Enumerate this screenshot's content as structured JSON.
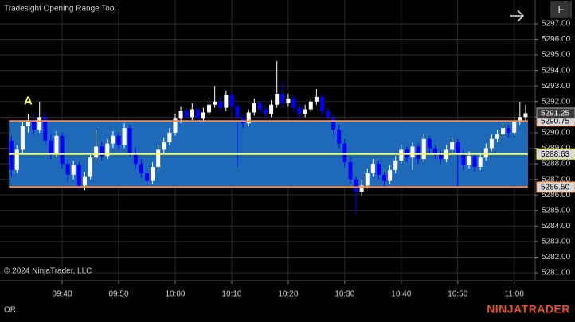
{
  "chart_data": {
    "type": "candlestick",
    "title": "Tradesight Opening Range Tool",
    "candles": [
      [
        5289.5,
        5289.8,
        5287.2,
        5287.6
      ],
      [
        5287.6,
        5289.2,
        5287.4,
        5288.9
      ],
      [
        5288.9,
        5290.8,
        5288.7,
        5290.4
      ],
      [
        5290.4,
        5291.2,
        5290.0,
        5290.8
      ],
      [
        5290.8,
        5291.1,
        5289.9,
        5290.2
      ],
      [
        5290.2,
        5292.0,
        5290.0,
        5291.0
      ],
      [
        5291.0,
        5291.3,
        5289.2,
        5289.5
      ],
      [
        5289.5,
        5289.9,
        5288.3,
        5288.6
      ],
      [
        5288.6,
        5290.1,
        5288.4,
        5289.8
      ],
      [
        5289.8,
        5290.0,
        5287.7,
        5288.0
      ],
      [
        5288.0,
        5288.3,
        5286.9,
        5287.3
      ],
      [
        5287.3,
        5288.2,
        5287.0,
        5287.9
      ],
      [
        5287.9,
        5288.1,
        5286.3,
        5286.6
      ],
      [
        5286.6,
        5287.5,
        5286.3,
        5287.2
      ],
      [
        5287.2,
        5288.7,
        5287.0,
        5288.4
      ],
      [
        5288.4,
        5290.2,
        5288.2,
        5289.1
      ],
      [
        5289.1,
        5289.4,
        5288.2,
        5288.5
      ],
      [
        5288.5,
        5289.6,
        5288.3,
        5289.3
      ],
      [
        5289.3,
        5290.1,
        5289.0,
        5289.8
      ],
      [
        5289.8,
        5290.0,
        5288.9,
        5289.2
      ],
      [
        5289.2,
        5290.6,
        5289.0,
        5290.3
      ],
      [
        5290.3,
        5290.5,
        5288.4,
        5288.7
      ],
      [
        5288.7,
        5289.0,
        5287.7,
        5288.0
      ],
      [
        5288.0,
        5288.3,
        5287.1,
        5287.4
      ],
      [
        5287.4,
        5287.6,
        5286.6,
        5286.9
      ],
      [
        5286.9,
        5288.1,
        5286.7,
        5287.8
      ],
      [
        5287.8,
        5289.2,
        5287.6,
        5288.9
      ],
      [
        5288.9,
        5289.7,
        5288.7,
        5289.4
      ],
      [
        5289.4,
        5290.3,
        5289.2,
        5290.0
      ],
      [
        5290.0,
        5291.2,
        5289.8,
        5290.9
      ],
      [
        5290.9,
        5291.7,
        5290.6,
        5291.4
      ],
      [
        5291.4,
        5291.6,
        5290.7,
        5291.0
      ],
      [
        5291.0,
        5291.9,
        5290.8,
        5291.5
      ],
      [
        5291.5,
        5291.7,
        5290.6,
        5290.9
      ],
      [
        5290.9,
        5291.6,
        5290.7,
        5291.3
      ],
      [
        5291.3,
        5292.1,
        5291.1,
        5291.8
      ],
      [
        5291.8,
        5293.0,
        5291.6,
        5292.0
      ],
      [
        5292.0,
        5292.3,
        5291.3,
        5291.6
      ],
      [
        5291.6,
        5292.7,
        5291.4,
        5292.4
      ],
      [
        5292.4,
        5292.6,
        5291.4,
        5291.7
      ],
      [
        5291.7,
        5291.9,
        5287.8,
        5291.0
      ],
      [
        5291.0,
        5291.2,
        5290.3,
        5290.6
      ],
      [
        5290.6,
        5291.5,
        5290.4,
        5291.3
      ],
      [
        5291.3,
        5292.2,
        5291.1,
        5291.9
      ],
      [
        5291.9,
        5292.1,
        5291.2,
        5291.5
      ],
      [
        5291.5,
        5291.8,
        5290.9,
        5291.2
      ],
      [
        5291.2,
        5292.1,
        5291.0,
        5291.8
      ],
      [
        5291.8,
        5294.6,
        5291.6,
        5292.5
      ],
      [
        5292.5,
        5293.3,
        5291.6,
        5291.9
      ],
      [
        5291.9,
        5292.5,
        5291.7,
        5292.2
      ],
      [
        5292.2,
        5292.4,
        5291.3,
        5291.6
      ],
      [
        5291.6,
        5291.9,
        5290.9,
        5291.2
      ],
      [
        5291.2,
        5291.8,
        5291.0,
        5291.5
      ],
      [
        5291.5,
        5292.2,
        5291.3,
        5292.0
      ],
      [
        5292.0,
        5292.8,
        5291.8,
        5292.3
      ],
      [
        5292.3,
        5292.5,
        5291.1,
        5291.4
      ],
      [
        5291.4,
        5291.6,
        5290.7,
        5291.0
      ],
      [
        5291.0,
        5291.2,
        5289.9,
        5290.2
      ],
      [
        5290.2,
        5290.5,
        5289.0,
        5289.3
      ],
      [
        5289.3,
        5289.6,
        5287.8,
        5288.1
      ],
      [
        5288.1,
        5288.4,
        5286.7,
        5287.0
      ],
      [
        5287.0,
        5287.2,
        5284.8,
        5286.2
      ],
      [
        5286.2,
        5287.0,
        5285.9,
        5286.6
      ],
      [
        5286.6,
        5287.7,
        5286.4,
        5287.4
      ],
      [
        5287.4,
        5288.3,
        5287.2,
        5288.0
      ],
      [
        5288.0,
        5288.2,
        5287.0,
        5287.3
      ],
      [
        5287.3,
        5287.5,
        5286.4,
        5286.9
      ],
      [
        5286.9,
        5287.9,
        5286.7,
        5287.6
      ],
      [
        5287.6,
        5288.5,
        5287.4,
        5288.2
      ],
      [
        5288.2,
        5289.2,
        5288.0,
        5288.9
      ],
      [
        5288.9,
        5289.1,
        5288.1,
        5288.4
      ],
      [
        5288.4,
        5289.4,
        5287.6,
        5289.1
      ],
      [
        5289.1,
        5289.3,
        5288.0,
        5288.3
      ],
      [
        5288.3,
        5289.9,
        5288.1,
        5289.6
      ],
      [
        5289.6,
        5289.8,
        5288.7,
        5289.0
      ],
      [
        5289.0,
        5289.2,
        5288.3,
        5288.6
      ],
      [
        5288.6,
        5288.8,
        5288.0,
        5288.3
      ],
      [
        5288.3,
        5289.2,
        5288.1,
        5288.9
      ],
      [
        5288.9,
        5289.7,
        5288.7,
        5289.4
      ],
      [
        5289.4,
        5289.6,
        5286.5,
        5288.7
      ],
      [
        5288.7,
        5288.9,
        5287.6,
        5287.9
      ],
      [
        5287.9,
        5288.8,
        5287.7,
        5288.5
      ],
      [
        5288.5,
        5288.7,
        5287.5,
        5287.8
      ],
      [
        5287.8,
        5288.7,
        5287.6,
        5288.4
      ],
      [
        5288.4,
        5289.3,
        5288.2,
        5289.0
      ],
      [
        5289.0,
        5289.9,
        5288.8,
        5289.6
      ],
      [
        5289.6,
        5290.2,
        5289.4,
        5289.9
      ],
      [
        5289.9,
        5290.6,
        5289.7,
        5290.3
      ],
      [
        5290.3,
        5290.5,
        5289.7,
        5290.0
      ],
      [
        5290.0,
        5291.0,
        5289.8,
        5290.7
      ],
      [
        5290.7,
        5292.0,
        5290.5,
        5291.0
      ],
      [
        5291.0,
        5291.8,
        5290.8,
        5291.25
      ]
    ],
    "up_color": "#ffffff",
    "down_color": "#0000ff",
    "xlim": [
      -2,
      92.7
    ],
    "xticks": [
      {
        "value": 9,
        "label": "09:40"
      },
      {
        "value": 19,
        "label": "09:50"
      },
      {
        "value": 29,
        "label": "10:00"
      },
      {
        "value": 39,
        "label": "10:10"
      },
      {
        "value": 49,
        "label": "10:20"
      },
      {
        "value": 59,
        "label": "10:30"
      },
      {
        "value": 69,
        "label": "10:40"
      },
      {
        "value": 79,
        "label": "10:50"
      },
      {
        "value": 89,
        "label": "11:00"
      }
    ],
    "ylim": [
      5280.49,
      5298.53
    ],
    "yticks": [
      {
        "value": 5281,
        "label": "5281.00"
      },
      {
        "value": 5282,
        "label": "5282.00"
      },
      {
        "value": 5283,
        "label": "5283.00"
      },
      {
        "value": 5284,
        "label": "5284.00"
      },
      {
        "value": 5285,
        "label": "5285.00"
      },
      {
        "value": 5286,
        "label": "5286.00"
      },
      {
        "value": 5287,
        "label": "5287.00"
      },
      {
        "value": 5288,
        "label": "5288.00"
      },
      {
        "value": 5289,
        "label": "5289.00"
      },
      {
        "value": 5290,
        "label": "5290.00"
      },
      {
        "value": 5291,
        "label": "5291.00"
      },
      {
        "value": 5292,
        "label": "5292.00"
      },
      {
        "value": 5293,
        "label": "5293.00"
      },
      {
        "value": 5294,
        "label": "5294.00"
      },
      {
        "value": 5295,
        "label": "5295.00"
      },
      {
        "value": 5296,
        "label": "5296.00"
      },
      {
        "value": 5297,
        "label": "5297.00"
      }
    ],
    "grid": true,
    "range": {
      "high": {
        "value": 5290.75,
        "label": "5290.75"
      },
      "mid": {
        "value": 5288.63,
        "label": "5288.63"
      },
      "low": {
        "value": 5286.5,
        "label": "5286.50"
      },
      "fill": "#1f6ab8",
      "edge_color": "#ff8c42",
      "mid_color": "#ffff33"
    },
    "last_price": {
      "value": 5291.25,
      "label": "5291.25"
    },
    "annotation": {
      "text": "A",
      "x": 3,
      "y": 5291.9,
      "color": "#ffff33"
    }
  },
  "copyright": "© 2024 NinjaTrader, LLC",
  "footer_left": "OR",
  "brand": "NINJATRADER",
  "button": "F"
}
